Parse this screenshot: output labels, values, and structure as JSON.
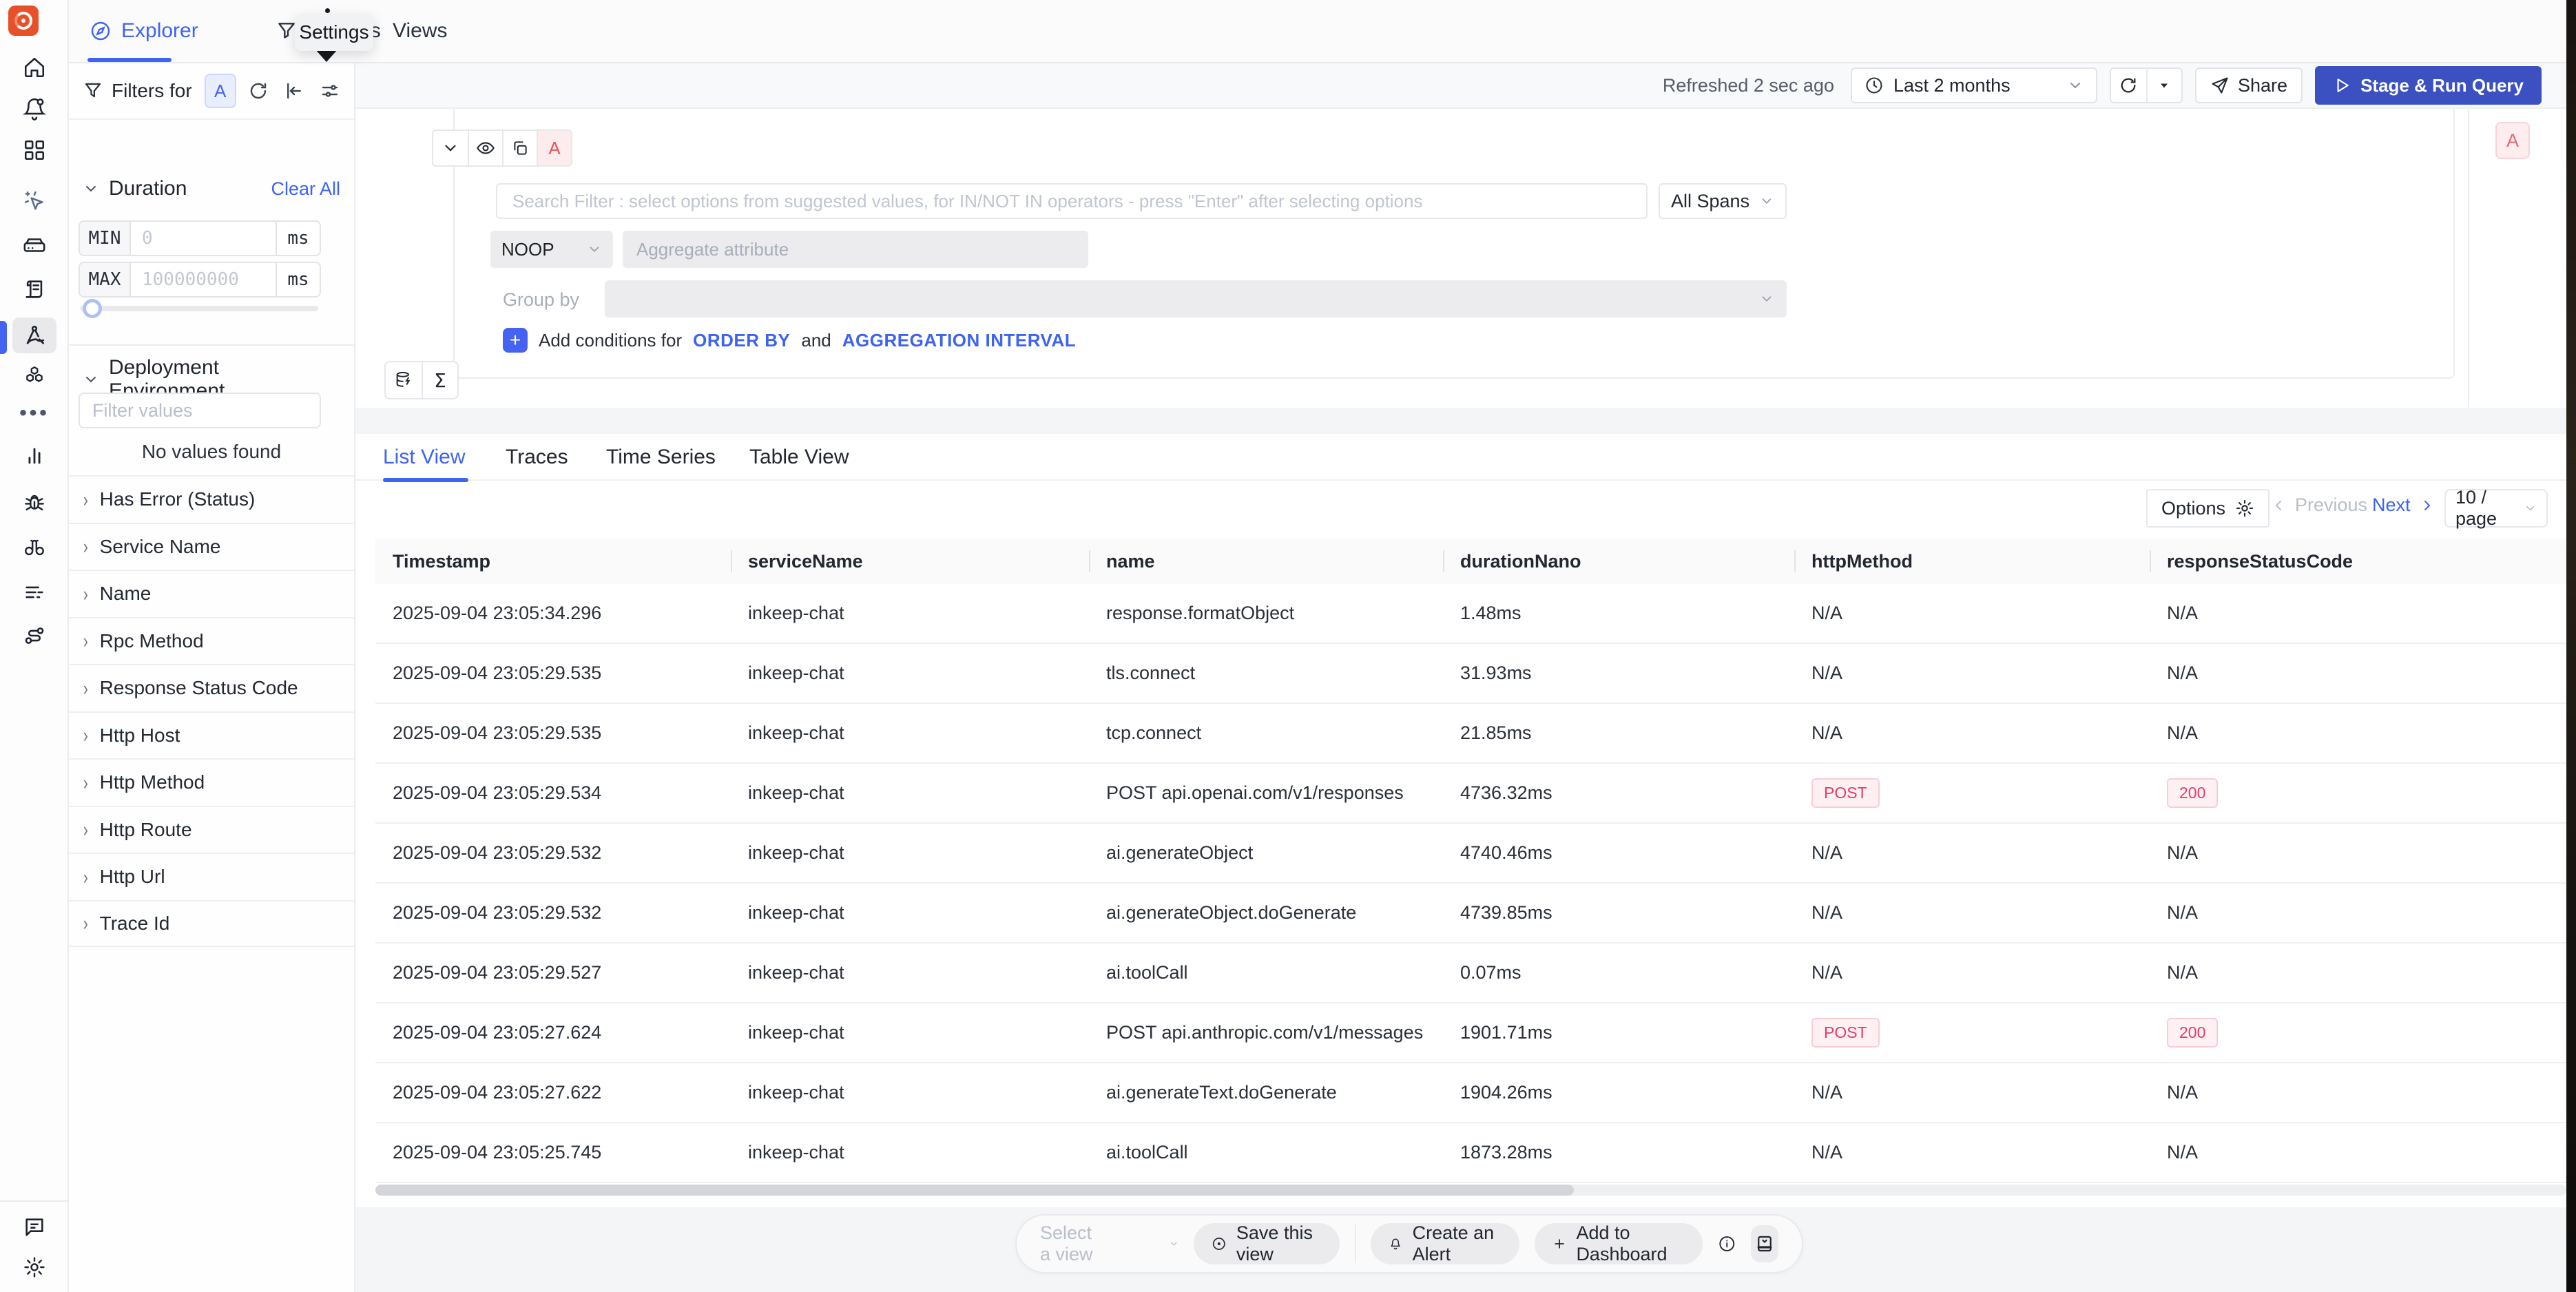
{
  "colors": {
    "accent": "#3d63f2",
    "run_button": "#3b50c1",
    "badge": "#e23c66",
    "logo": "#e8502a",
    "active_indicator": "#4662f0"
  },
  "sidebar": {
    "icons": [
      "signoz-logo",
      "home-icon",
      "alerts-bell-icon",
      "dashboards-grid-icon",
      "click-to-deploy-icon",
      "infrastructure-icon",
      "logs-icon",
      "traces-icon",
      "services-cubes-icon",
      "more-dots-icon",
      "metrics-chart-icon",
      "exceptions-bug-icon",
      "explore-binoculars-icon",
      "logs-pipeline-icon",
      "routes-icon",
      "feedback-chat-icon",
      "settings-gear-icon"
    ],
    "active": "traces-icon"
  },
  "tabbar": {
    "tabs": [
      {
        "label": "Explorer"
      },
      {
        "label": "Funnels"
      },
      {
        "label": "Views"
      }
    ],
    "tooltip": "Settings"
  },
  "actionbar": {
    "refreshed": "Refreshed 2 sec ago",
    "time_range": "Last 2 months",
    "share": "Share",
    "run": "Stage & Run Query"
  },
  "filters": {
    "title": "Filters for",
    "query_badge": "A",
    "duration": {
      "title": "Duration",
      "clear_all": "Clear All",
      "min_label": "MIN",
      "min_placeholder": "0",
      "max_label": "MAX",
      "max_placeholder": "100000000",
      "unit": "ms"
    },
    "deployment": {
      "title": "Deployment Environment",
      "placeholder": "Filter values",
      "empty": "No values found"
    },
    "sections": [
      "Has Error (Status)",
      "Service Name",
      "Name",
      "Rpc Method",
      "Response Status Code",
      "Http Host",
      "Http Method",
      "Http Route",
      "Http Url",
      "Trace Id"
    ]
  },
  "query": {
    "search_placeholder": "Search Filter : select options from suggested values, for IN/NOT IN operators - press \"Enter\" after selecting options",
    "span_scope": "All Spans",
    "aggregate_op": "NOOP",
    "aggregate_placeholder": "Aggregate attribute",
    "group_by_label": "Group by",
    "conditions_prefix": "Add conditions for",
    "order_by_link": "ORDER BY",
    "conditions_and": "and",
    "aggregation_link": "AGGREGATION INTERVAL",
    "query_letter": "A"
  },
  "views": {
    "tabs": [
      {
        "label": "List View"
      },
      {
        "label": "Traces"
      },
      {
        "label": "Time Series"
      },
      {
        "label": "Table View"
      }
    ],
    "active": "List View"
  },
  "pagination": {
    "options": "Options",
    "previous": "Previous",
    "next": "Next",
    "page_size": "10 / page"
  },
  "table": {
    "columns": [
      "Timestamp",
      "serviceName",
      "name",
      "durationNano",
      "httpMethod",
      "responseStatusCode"
    ],
    "rows": [
      [
        "2025-09-04 23:05:34.296",
        "inkeep-chat",
        "response.formatObject",
        "1.48ms",
        "N/A",
        "N/A"
      ],
      [
        "2025-09-04 23:05:29.535",
        "inkeep-chat",
        "tls.connect",
        "31.93ms",
        "N/A",
        "N/A"
      ],
      [
        "2025-09-04 23:05:29.535",
        "inkeep-chat",
        "tcp.connect",
        "21.85ms",
        "N/A",
        "N/A"
      ],
      [
        "2025-09-04 23:05:29.534",
        "inkeep-chat",
        "POST api.openai.com/v1/responses",
        "4736.32ms",
        "POST",
        "200"
      ],
      [
        "2025-09-04 23:05:29.532",
        "inkeep-chat",
        "ai.generateObject",
        "4740.46ms",
        "N/A",
        "N/A"
      ],
      [
        "2025-09-04 23:05:29.532",
        "inkeep-chat",
        "ai.generateObject.doGenerate",
        "4739.85ms",
        "N/A",
        "N/A"
      ],
      [
        "2025-09-04 23:05:29.527",
        "inkeep-chat",
        "ai.toolCall",
        "0.07ms",
        "N/A",
        "N/A"
      ],
      [
        "2025-09-04 23:05:27.624",
        "inkeep-chat",
        "POST api.anthropic.com/v1/messages",
        "1901.71ms",
        "POST",
        "200"
      ],
      [
        "2025-09-04 23:05:27.622",
        "inkeep-chat",
        "ai.generateText.doGenerate",
        "1904.26ms",
        "N/A",
        "N/A"
      ],
      [
        "2025-09-04 23:05:25.745",
        "inkeep-chat",
        "ai.toolCall",
        "1873.28ms",
        "N/A",
        "N/A"
      ]
    ],
    "na_value": "N/A"
  },
  "footer": {
    "select_view_placeholder": "Select a view",
    "save_view": "Save this view",
    "create_alert": "Create an Alert",
    "add_dashboard": "Add to Dashboard"
  }
}
